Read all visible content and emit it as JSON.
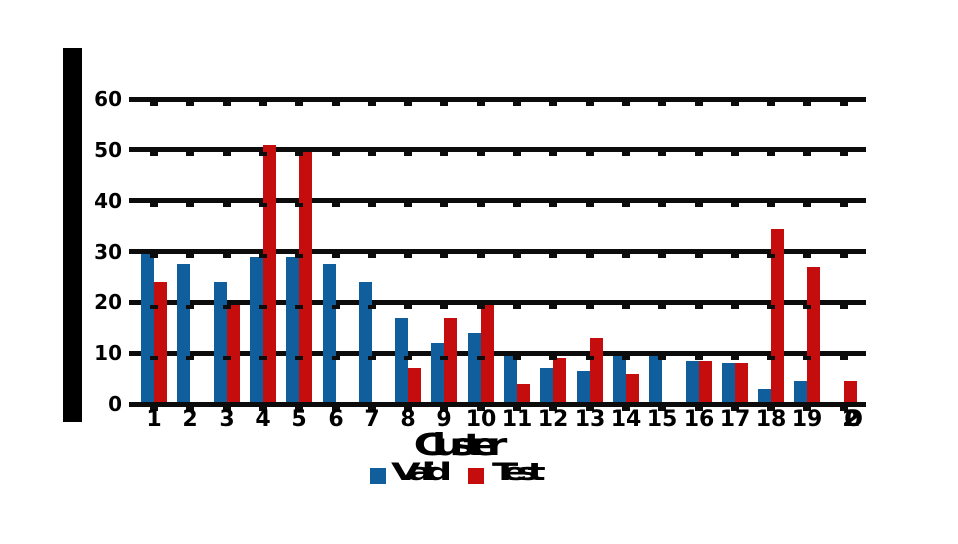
{
  "chart_data": {
    "type": "bar",
    "title": "",
    "xlabel": "Cluster",
    "ylabel": "",
    "categories": [
      "1",
      "2",
      "3",
      "4",
      "5",
      "6",
      "7",
      "8",
      "9",
      "10",
      "11",
      "12",
      "13",
      "14",
      "15",
      "16",
      "17",
      "18",
      "19",
      "20"
    ],
    "series": [
      {
        "name": "Valid",
        "color": "#115e9c",
        "values": [
          29.5,
          27.5,
          24,
          29,
          29,
          27.5,
          24,
          17,
          12,
          14,
          9.5,
          7,
          6.5,
          9.5,
          9.5,
          8.5,
          8,
          3,
          4.5,
          0
        ]
      },
      {
        "name": "Test",
        "color": "#c50d0d",
        "values": [
          24,
          0,
          19.5,
          51,
          49.5,
          0,
          0,
          7,
          17,
          19.5,
          4,
          9,
          13,
          6,
          0,
          8.5,
          8,
          34.5,
          27,
          4.5
        ]
      }
    ],
    "ylim": [
      0,
      65
    ],
    "yticks": [
      0,
      10,
      20,
      30,
      40,
      50,
      60
    ],
    "grid": "horizontal-heavy",
    "legend_position": "bottom-center",
    "styles": {
      "background": "#ffffff",
      "grid_color": "#0c0c0c",
      "spine_color": "#000000",
      "text_garbled": true
    }
  }
}
